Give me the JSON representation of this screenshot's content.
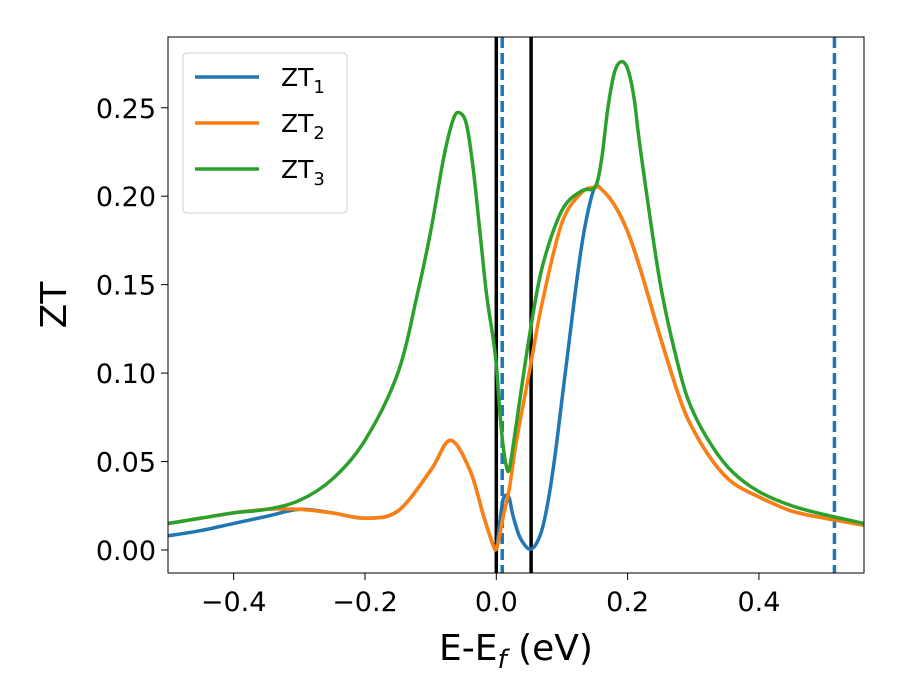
{
  "chart_data": {
    "type": "line",
    "xlabel": "E-E_f (eV)",
    "xlabel_parts": {
      "main": "E-E",
      "sub": "f",
      "unit": " (eV)"
    },
    "ylabel": "ZT",
    "xlim": [
      -0.5,
      0.56
    ],
    "ylim": [
      -0.013,
      0.29
    ],
    "xticks": [
      -0.4,
      -0.2,
      0.0,
      0.2,
      0.4
    ],
    "xtick_labels": [
      "−0.4",
      "−0.2",
      "0.0",
      "0.2",
      "0.4"
    ],
    "yticks": [
      0.0,
      0.05,
      0.1,
      0.15,
      0.2,
      0.25
    ],
    "ytick_labels": [
      "0.00",
      "0.05",
      "0.10",
      "0.15",
      "0.20",
      "0.25"
    ],
    "legend_placement": "top-left",
    "grid": false,
    "series": [
      {
        "name": "ZT_1",
        "label_main": "ZT",
        "label_sub": "1",
        "color": "#1f77b4",
        "x": [
          -0.5,
          -0.45,
          -0.4,
          -0.35,
          -0.3,
          -0.25,
          -0.2,
          -0.15,
          -0.1,
          -0.07,
          -0.04,
          -0.02,
          -0.005,
          0.0,
          0.005,
          0.01,
          0.015,
          0.02,
          0.025,
          0.035,
          0.045,
          0.052,
          0.06,
          0.07,
          0.08,
          0.09,
          0.1,
          0.11,
          0.12,
          0.13,
          0.14,
          0.15,
          0.16,
          0.18,
          0.2,
          0.22,
          0.25,
          0.28,
          0.3,
          0.33,
          0.36,
          0.4,
          0.45,
          0.5,
          0.56
        ],
        "y": [
          0.008,
          0.011,
          0.015,
          0.019,
          0.023,
          0.021,
          0.018,
          0.022,
          0.045,
          0.062,
          0.045,
          0.02,
          0.003,
          0.001,
          0.015,
          0.028,
          0.031,
          0.029,
          0.02,
          0.008,
          0.002,
          0.0005,
          0.003,
          0.012,
          0.03,
          0.055,
          0.085,
          0.115,
          0.145,
          0.172,
          0.192,
          0.205,
          0.204,
          0.195,
          0.18,
          0.158,
          0.12,
          0.085,
          0.068,
          0.05,
          0.038,
          0.03,
          0.022,
          0.018,
          0.014
        ]
      },
      {
        "name": "ZT_2",
        "label_main": "ZT",
        "label_sub": "2",
        "color": "#ff7f0e",
        "x": [
          -0.5,
          -0.45,
          -0.4,
          -0.35,
          -0.3,
          -0.25,
          -0.2,
          -0.15,
          -0.1,
          -0.07,
          -0.04,
          -0.02,
          -0.005,
          0.0,
          0.005,
          0.01,
          0.02,
          0.03,
          0.05,
          0.07,
          0.1,
          0.13,
          0.15,
          0.16,
          0.18,
          0.2,
          0.22,
          0.25,
          0.28,
          0.3,
          0.33,
          0.36,
          0.4,
          0.45,
          0.5,
          0.56
        ],
        "y": [
          0.015,
          0.018,
          0.021,
          0.023,
          0.023,
          0.021,
          0.018,
          0.022,
          0.045,
          0.062,
          0.045,
          0.02,
          0.003,
          0.0005,
          0.008,
          0.018,
          0.035,
          0.06,
          0.1,
          0.14,
          0.185,
          0.202,
          0.205,
          0.204,
          0.195,
          0.18,
          0.158,
          0.12,
          0.085,
          0.068,
          0.05,
          0.038,
          0.03,
          0.022,
          0.018,
          0.014
        ]
      },
      {
        "name": "ZT_3",
        "label_main": "ZT",
        "label_sub": "3",
        "color": "#2ca02c",
        "x": [
          -0.5,
          -0.45,
          -0.4,
          -0.35,
          -0.3,
          -0.25,
          -0.2,
          -0.15,
          -0.12,
          -0.1,
          -0.08,
          -0.065,
          -0.055,
          -0.045,
          -0.035,
          -0.025,
          -0.015,
          -0.005,
          0.0,
          0.005,
          0.01,
          0.015,
          0.02,
          0.03,
          0.05,
          0.07,
          0.1,
          0.13,
          0.15,
          0.16,
          0.17,
          0.18,
          0.19,
          0.2,
          0.21,
          0.22,
          0.25,
          0.28,
          0.3,
          0.33,
          0.36,
          0.4,
          0.45,
          0.5,
          0.56
        ],
        "y": [
          0.015,
          0.018,
          0.021,
          0.023,
          0.028,
          0.04,
          0.062,
          0.1,
          0.145,
          0.18,
          0.222,
          0.244,
          0.247,
          0.24,
          0.215,
          0.18,
          0.145,
          0.12,
          0.105,
          0.08,
          0.06,
          0.048,
          0.046,
          0.07,
          0.12,
          0.16,
          0.192,
          0.203,
          0.205,
          0.22,
          0.25,
          0.27,
          0.276,
          0.272,
          0.255,
          0.225,
          0.15,
          0.1,
          0.078,
          0.058,
          0.044,
          0.033,
          0.025,
          0.02,
          0.015
        ]
      }
    ],
    "vertical_lines": [
      {
        "x": 0.0,
        "color": "#000000",
        "style": "solid"
      },
      {
        "x": 0.053,
        "color": "#000000",
        "style": "solid"
      },
      {
        "x": 0.009,
        "color": "#1f77b4",
        "style": "dashed"
      },
      {
        "x": 0.515,
        "color": "#1f77b4",
        "style": "dashed"
      }
    ]
  }
}
